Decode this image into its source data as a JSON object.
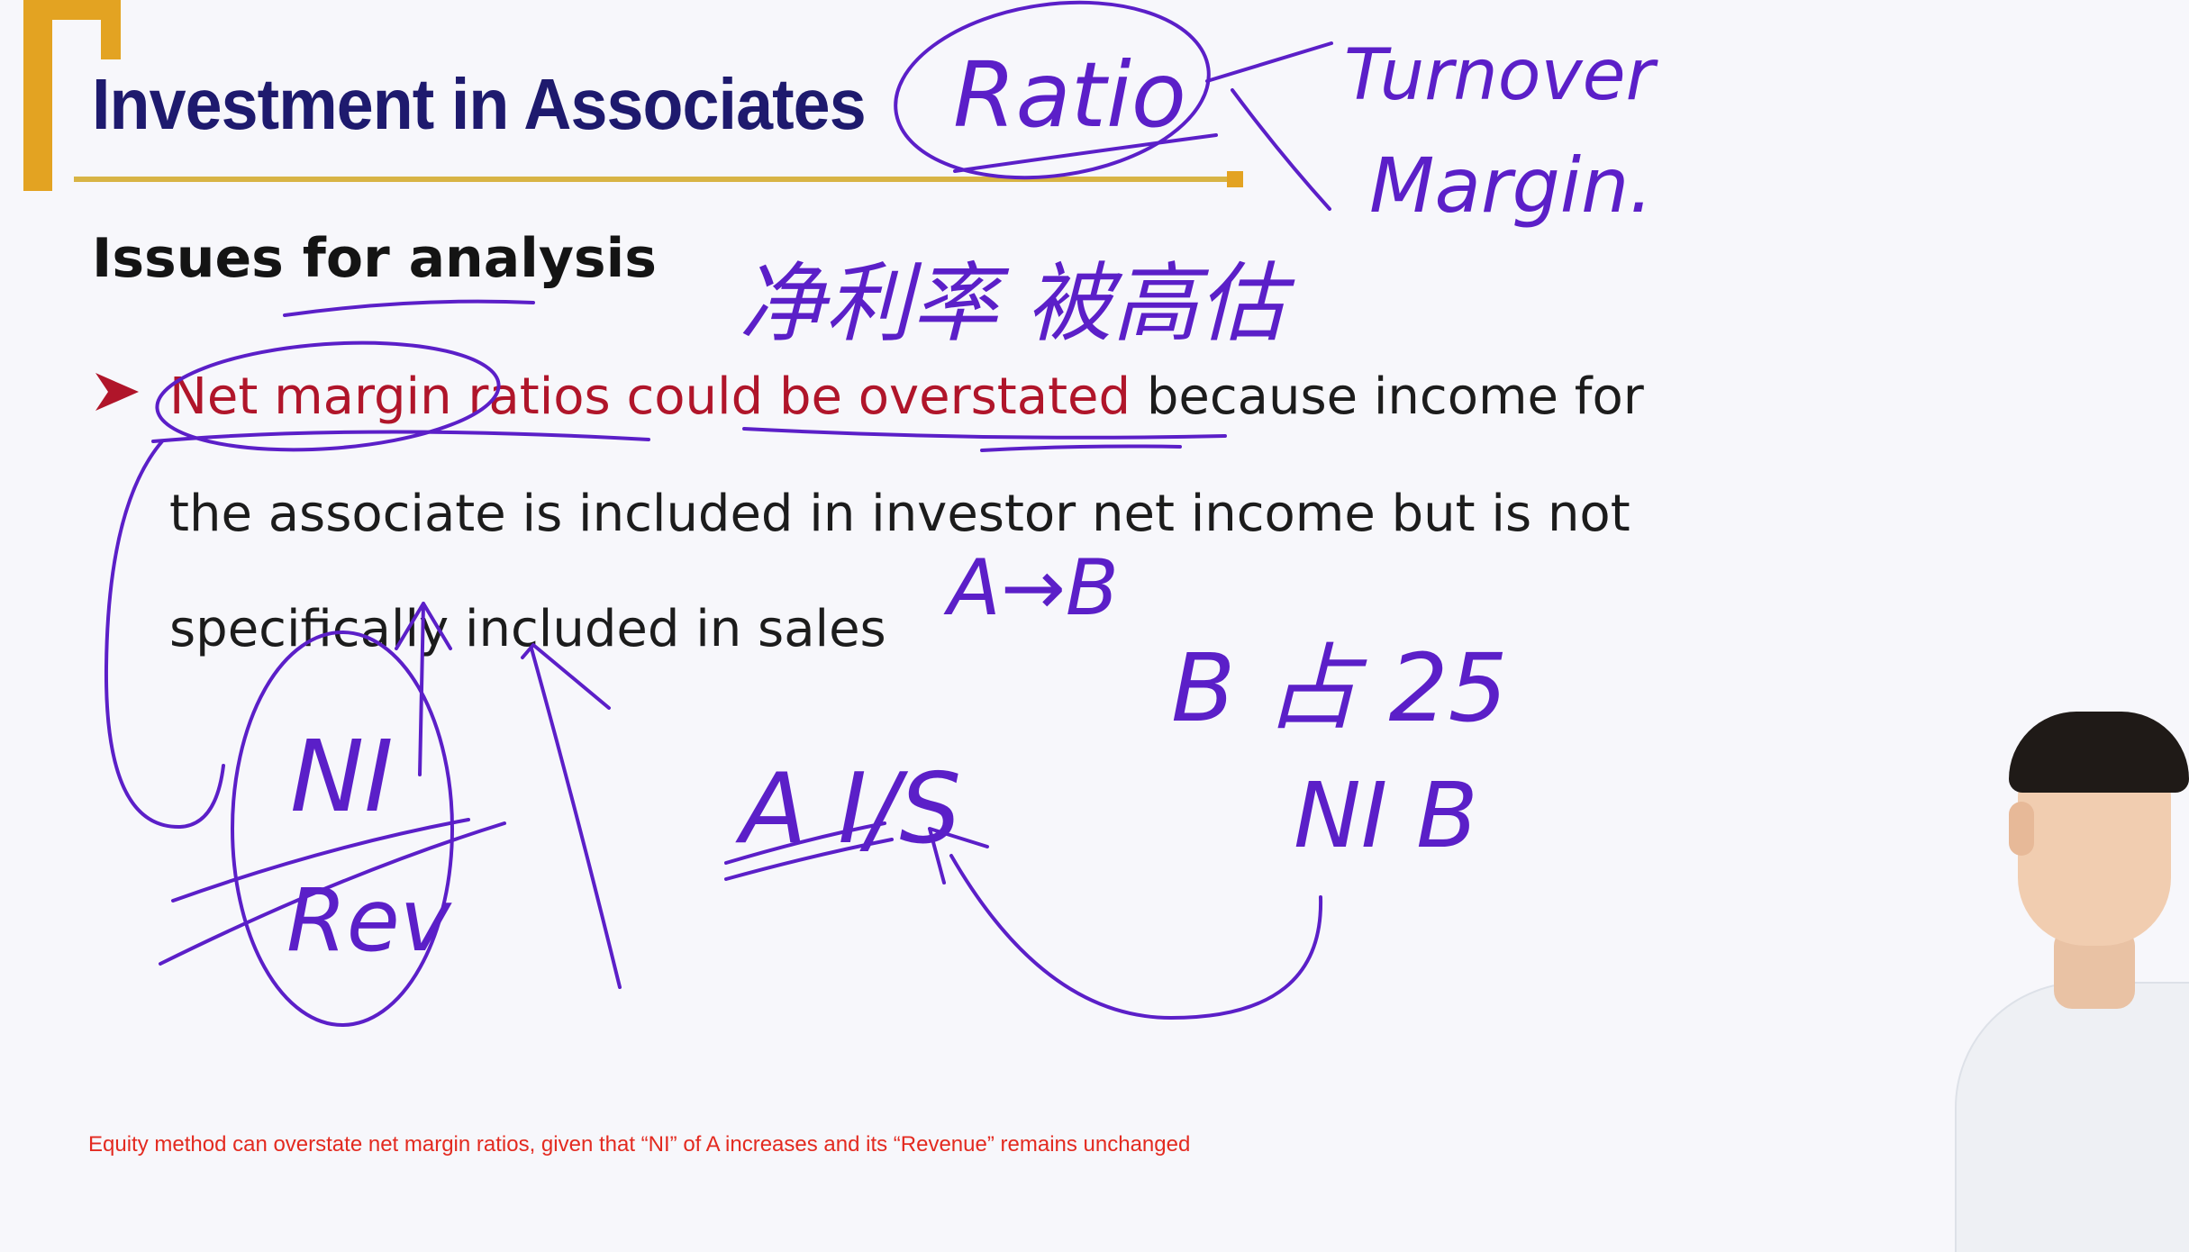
{
  "slide": {
    "title": "Investment in Associates",
    "subtitle": "Issues for analysis",
    "bullet": {
      "highlight": "Net margin ratios could be overstated",
      "line1_rest": " because income for",
      "line2": "the associate is included in investor net income but is not",
      "line3": "specifically included in sales"
    },
    "caption": "Equity method can overstate net margin ratios, given that “NI” of A increases and its “Revenue” remains unchanged"
  },
  "annotations": {
    "ratio": "Ratio",
    "turnover": "Turnover",
    "margin": "Margin.",
    "chinese_note": "净利率 被高估",
    "a_to_b": "A→B",
    "b_pct": "B 占 25",
    "ni_b": "NI B",
    "ni": "NI",
    "rev": "Rev",
    "ais": "A I/S"
  },
  "colors": {
    "title": "#1e1a6e",
    "highlight": "#b0152a",
    "ink": "#5b1fc8",
    "gold": "#e3a322",
    "caption": "#e32a20"
  }
}
